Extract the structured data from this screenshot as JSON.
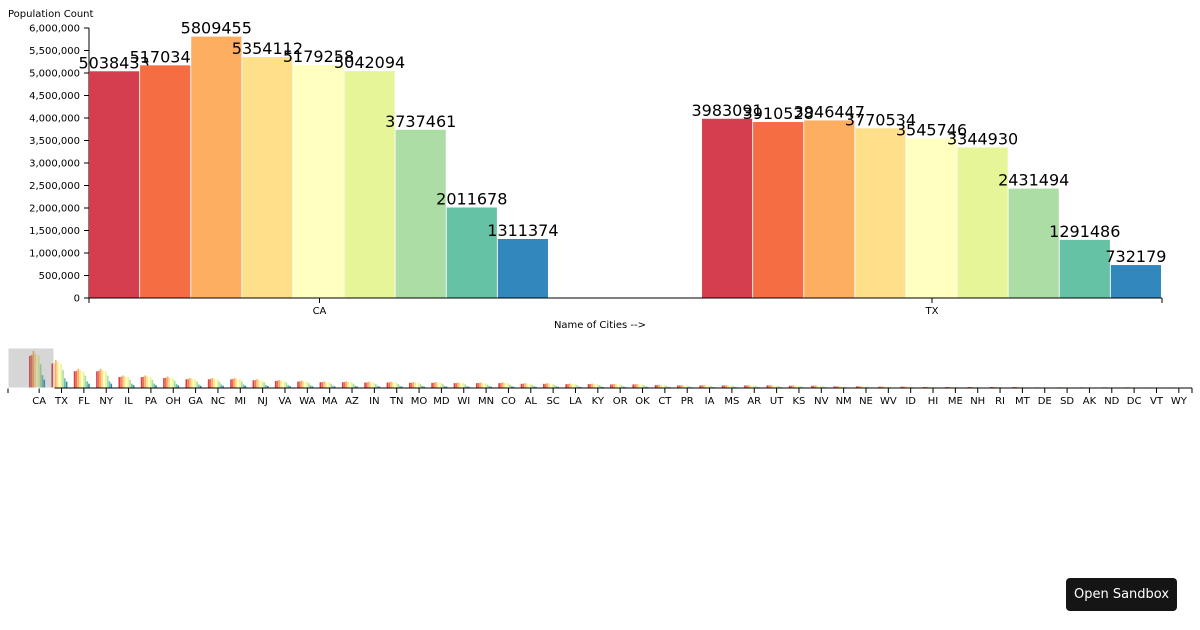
{
  "chart_data": {
    "type": "bar",
    "ylabel": "Population Count",
    "xlabel": "Name of Cities -->",
    "ylim": [
      0,
      6000000
    ],
    "y_ticks": [
      0,
      500000,
      1000000,
      1500000,
      2000000,
      2500000,
      3000000,
      3500000,
      4000000,
      4500000,
      5000000,
      5500000,
      6000000
    ],
    "y_tick_labels": [
      "0",
      "500,000",
      "1,000,000",
      "1,500,000",
      "2,000,000",
      "2,500,000",
      "3,000,000",
      "3,500,000",
      "4,000,000",
      "4,500,000",
      "5,000,000",
      "5,500,000",
      "6,000,000"
    ],
    "bar_colors": [
      "#d53e4f",
      "#f46d43",
      "#fdae61",
      "#fee08b",
      "#ffffbf",
      "#e6f598",
      "#abdda4",
      "#66c2a5",
      "#3288bd"
    ],
    "categories": [
      "CA",
      "TX"
    ],
    "groups": [
      {
        "category": "CA",
        "values": [
          5038433,
          5170341,
          5809455,
          5354112,
          5179258,
          5042094,
          3737461,
          2011678,
          1311374
        ]
      },
      {
        "category": "TX",
        "values": [
          3983091,
          3910528,
          3946447,
          3770534,
          3545746,
          3344930,
          2431494,
          1291486,
          732179
        ]
      }
    ],
    "grid": false,
    "legend": "none"
  },
  "overview": {
    "states": [
      "CA",
      "TX",
      "FL",
      "NY",
      "IL",
      "PA",
      "OH",
      "GA",
      "NC",
      "MI",
      "NJ",
      "VA",
      "WA",
      "MA",
      "AZ",
      "IN",
      "TN",
      "MO",
      "MD",
      "WI",
      "MN",
      "CO",
      "AL",
      "SC",
      "LA",
      "KY",
      "OR",
      "OK",
      "CT",
      "PR",
      "IA",
      "MS",
      "AR",
      "UT",
      "KS",
      "NV",
      "NM",
      "NE",
      "WV",
      "ID",
      "HI",
      "ME",
      "NH",
      "RI",
      "MT",
      "DE",
      "SD",
      "AK",
      "ND",
      "DC",
      "VT",
      "WY"
    ],
    "relative_totals": [
      1.0,
      0.76,
      0.52,
      0.52,
      0.34,
      0.34,
      0.31,
      0.27,
      0.27,
      0.27,
      0.24,
      0.22,
      0.2,
      0.18,
      0.18,
      0.17,
      0.17,
      0.16,
      0.16,
      0.15,
      0.15,
      0.15,
      0.13,
      0.13,
      0.12,
      0.12,
      0.11,
      0.11,
      0.09,
      0.08,
      0.08,
      0.08,
      0.08,
      0.08,
      0.07,
      0.07,
      0.05,
      0.05,
      0.04,
      0.04,
      0.03,
      0.03,
      0.03,
      0.03,
      0.03,
      0.02,
      0.02,
      0.02,
      0.02,
      0.02,
      0.015,
      0.015
    ],
    "brush_extent": [
      "CA",
      "TX"
    ]
  },
  "sandbox": {
    "label": "Open Sandbox"
  }
}
